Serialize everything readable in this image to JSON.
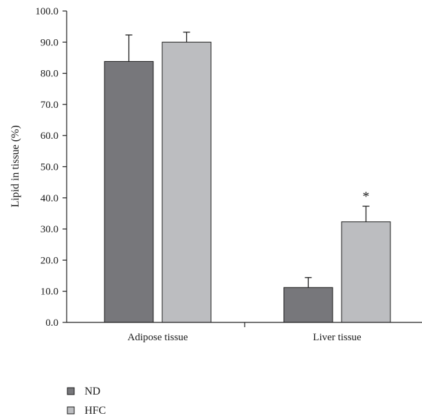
{
  "chart_data": {
    "type": "bar",
    "title": "",
    "xlabel": "",
    "ylabel": "Lipid in tissue (%)",
    "ylim": [
      0,
      100
    ],
    "yticks": [
      "0.0",
      "10.0",
      "20.0",
      "30.0",
      "40.0",
      "50.0",
      "60.0",
      "70.0",
      "80.0",
      "90.0",
      "100.0"
    ],
    "categories": [
      "Adipose tissue",
      "Liver tissue"
    ],
    "series": [
      {
        "name": "ND",
        "color": "#77777b",
        "values": [
          83.8,
          11.2
        ],
        "errors": [
          8.5,
          3.2
        ]
      },
      {
        "name": "HFC",
        "color": "#bcbdc0",
        "values": [
          90.0,
          32.3
        ],
        "errors": [
          3.2,
          5.0
        ]
      }
    ],
    "annotations": [
      {
        "text": "*",
        "category": "Liver tissue",
        "series": "HFC"
      }
    ],
    "legend_position": "bottom-left",
    "grid": false
  }
}
